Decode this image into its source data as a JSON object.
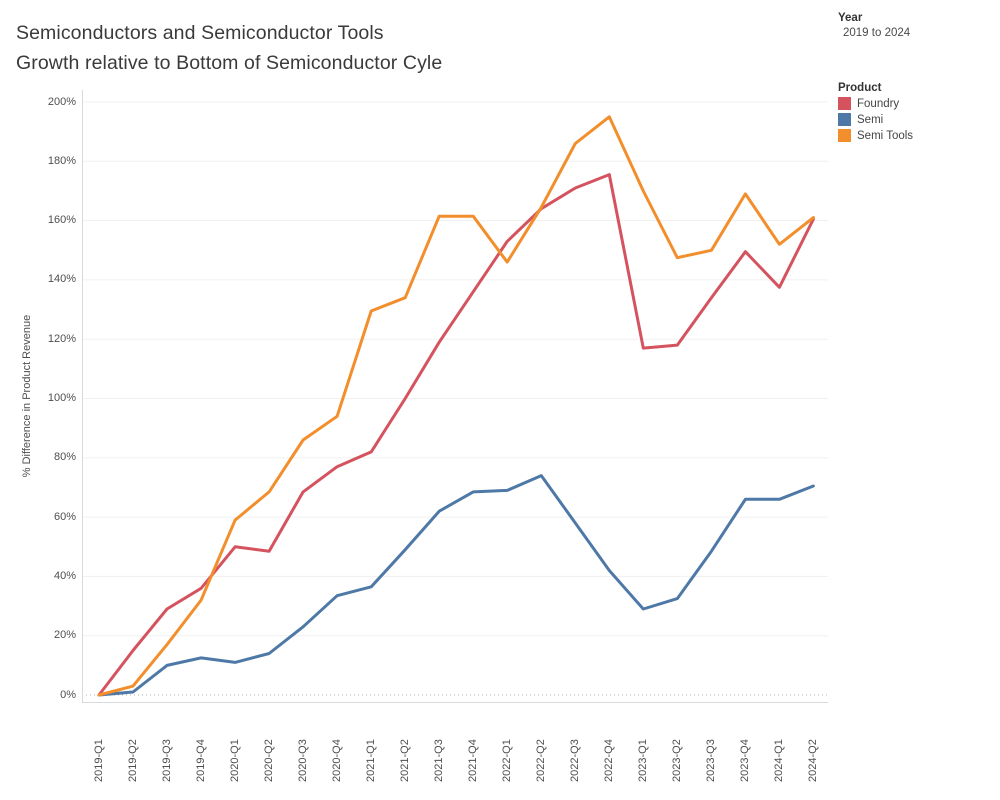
{
  "title": {
    "line1": "Semiconductors and Semiconductor Tools",
    "line2": "Growth relative to Bottom of Semiconductor Cyle"
  },
  "filters": {
    "year_label": "Year",
    "year_value": "2019 to 2024"
  },
  "legend": {
    "title": "Product",
    "position": "right",
    "items": [
      {
        "label": "Foundry",
        "color": "#d4535f"
      },
      {
        "label": "Semi",
        "color": "#4e79a7"
      },
      {
        "label": "Semi Tools",
        "color": "#f28e2b"
      }
    ]
  },
  "chart_data": {
    "type": "line",
    "title": "Semiconductors and Semiconductor Tools Growth relative to Bottom of Semiconductor Cyle",
    "xlabel": "",
    "ylabel": "% Difference in Product Revenue",
    "ylim": [
      0,
      200
    ],
    "ytick_step": 20,
    "ytick_suffix": "%",
    "grid": "horizontal",
    "zero_line": "dotted",
    "legend_position": "right",
    "categories": [
      "2019-Q1",
      "2019-Q2",
      "2019-Q3",
      "2019-Q4",
      "2020-Q1",
      "2020-Q2",
      "2020-Q3",
      "2020-Q4",
      "2021-Q1",
      "2021-Q2",
      "2021-Q3",
      "2021-Q4",
      "2022-Q1",
      "2022-Q2",
      "2022-Q3",
      "2022-Q4",
      "2023-Q1",
      "2023-Q2",
      "2023-Q3",
      "2023-Q4",
      "2024-Q1",
      "2024-Q2"
    ],
    "series": [
      {
        "name": "Foundry",
        "color": "#d4535f",
        "values": [
          0,
          15,
          29,
          36,
          50,
          48.5,
          68.5,
          77,
          82,
          100,
          119,
          136,
          153,
          164,
          171,
          175.5,
          117,
          118,
          134,
          149.5,
          137.5,
          160.5
        ]
      },
      {
        "name": "Semi",
        "color": "#4e79a7",
        "values": [
          0,
          1,
          10,
          12.5,
          11,
          14,
          23,
          33.5,
          36.5,
          49,
          62,
          68.5,
          69,
          74,
          58,
          42,
          29,
          32.5,
          48.5,
          66,
          66,
          70.5
        ]
      },
      {
        "name": "Semi Tools",
        "color": "#f28e2b",
        "values": [
          0,
          3,
          17,
          32,
          59,
          68.5,
          86,
          94,
          129.5,
          134,
          161.5,
          161.5,
          146,
          164.5,
          186,
          195,
          170,
          147.5,
          150,
          169,
          152,
          161
        ]
      }
    ]
  }
}
